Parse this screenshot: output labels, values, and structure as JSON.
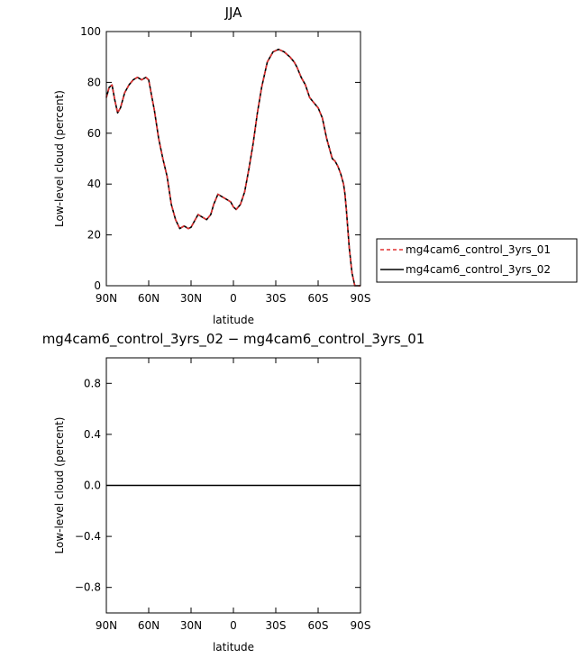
{
  "chart_data": [
    {
      "type": "line",
      "title": "JJA",
      "xlabel": "latitude",
      "ylabel": "Low-level cloud (percent)",
      "xlim": [
        90,
        -90
      ],
      "ylim": [
        0,
        100
      ],
      "x_ticks": [
        90,
        60,
        30,
        0,
        -30,
        -60,
        -90
      ],
      "x_tick_labels": [
        "90N",
        "60N",
        "30N",
        "0",
        "30S",
        "60S",
        "90S"
      ],
      "y_ticks": [
        0,
        20,
        40,
        60,
        80,
        100
      ],
      "y_tick_labels": [
        "0",
        "20",
        "40",
        "60",
        "80",
        "100"
      ],
      "legend_position": "right",
      "series": [
        {
          "name": "mg4cam6_control_3yrs_01",
          "color": "#e03030",
          "dash": "dashed",
          "x": [
            90,
            88,
            86,
            84,
            82,
            80,
            77,
            74,
            71,
            68,
            65,
            62,
            60,
            58,
            56,
            53,
            50,
            47,
            44,
            41,
            38,
            35,
            32,
            30,
            28,
            25,
            22,
            19,
            16,
            14,
            11,
            8,
            5,
            2,
            0,
            -2,
            -5,
            -8,
            -11,
            -14,
            -17,
            -20,
            -24,
            -28,
            -32,
            -36,
            -40,
            -43,
            -45,
            -48,
            -51,
            -54,
            -57,
            -60,
            -63,
            -66,
            -69,
            -70,
            -72,
            -74,
            -76,
            -78,
            -79,
            -80,
            -82,
            -84,
            -86,
            -87,
            -88,
            -89,
            -89.5,
            -90
          ],
          "values": [
            74,
            78,
            79,
            73,
            68,
            70,
            76,
            79,
            81,
            82,
            81,
            82,
            81,
            75,
            69,
            58,
            50,
            43,
            32,
            26,
            22.5,
            23.5,
            22.5,
            23,
            25,
            28,
            27,
            26,
            28,
            32,
            36,
            35,
            34,
            33,
            31,
            30,
            32,
            37,
            46,
            56,
            68,
            78,
            88,
            92,
            93,
            92,
            90,
            88,
            86,
            82,
            79,
            74,
            72,
            70,
            66,
            58,
            52,
            50,
            49,
            47,
            44,
            40,
            36,
            30,
            15,
            5,
            0,
            0,
            0,
            0,
            0,
            0
          ]
        },
        {
          "name": "mg4cam6_control_3yrs_02",
          "color": "#000000",
          "dash": "solid",
          "x": [
            90,
            88,
            86,
            84,
            82,
            80,
            77,
            74,
            71,
            68,
            65,
            62,
            60,
            58,
            56,
            53,
            50,
            47,
            44,
            41,
            38,
            35,
            32,
            30,
            28,
            25,
            22,
            19,
            16,
            14,
            11,
            8,
            5,
            2,
            0,
            -2,
            -5,
            -8,
            -11,
            -14,
            -17,
            -20,
            -24,
            -28,
            -32,
            -36,
            -40,
            -43,
            -45,
            -48,
            -51,
            -54,
            -57,
            -60,
            -63,
            -66,
            -69,
            -70,
            -72,
            -74,
            -76,
            -78,
            -79,
            -80,
            -82,
            -84,
            -86,
            -87,
            -88,
            -89,
            -89.5,
            -90
          ],
          "values": [
            74,
            78,
            79,
            73,
            68,
            70,
            76,
            79,
            81,
            82,
            81,
            82,
            81,
            75,
            69,
            58,
            50,
            43,
            32,
            26,
            22.5,
            23.5,
            22.5,
            23,
            25,
            28,
            27,
            26,
            28,
            32,
            36,
            35,
            34,
            33,
            31,
            30,
            32,
            37,
            46,
            56,
            68,
            78,
            88,
            92,
            93,
            92,
            90,
            88,
            86,
            82,
            79,
            74,
            72,
            70,
            66,
            58,
            52,
            50,
            49,
            47,
            44,
            40,
            36,
            30,
            15,
            5,
            0,
            0,
            0,
            0,
            0,
            0
          ]
        }
      ]
    },
    {
      "type": "line",
      "title": "mg4cam6_control_3yrs_02 − mg4cam6_control_3yrs_01",
      "xlabel": "latitude",
      "ylabel": "Low-level cloud (percent)",
      "xlim": [
        90,
        -90
      ],
      "ylim": [
        -1,
        1
      ],
      "x_ticks": [
        90,
        60,
        30,
        0,
        -30,
        -60,
        -90
      ],
      "x_tick_labels": [
        "90N",
        "60N",
        "30N",
        "0",
        "30S",
        "60S",
        "90S"
      ],
      "y_ticks": [
        -0.8,
        -0.4,
        0.0,
        0.4,
        0.8
      ],
      "y_tick_labels": [
        "−0.8",
        "−0.4",
        "0.0",
        "0.4",
        "0.8"
      ],
      "series": [
        {
          "color": "#000000",
          "dash": "solid",
          "x": [
            90,
            -90
          ],
          "values": [
            0,
            0
          ]
        }
      ]
    }
  ]
}
